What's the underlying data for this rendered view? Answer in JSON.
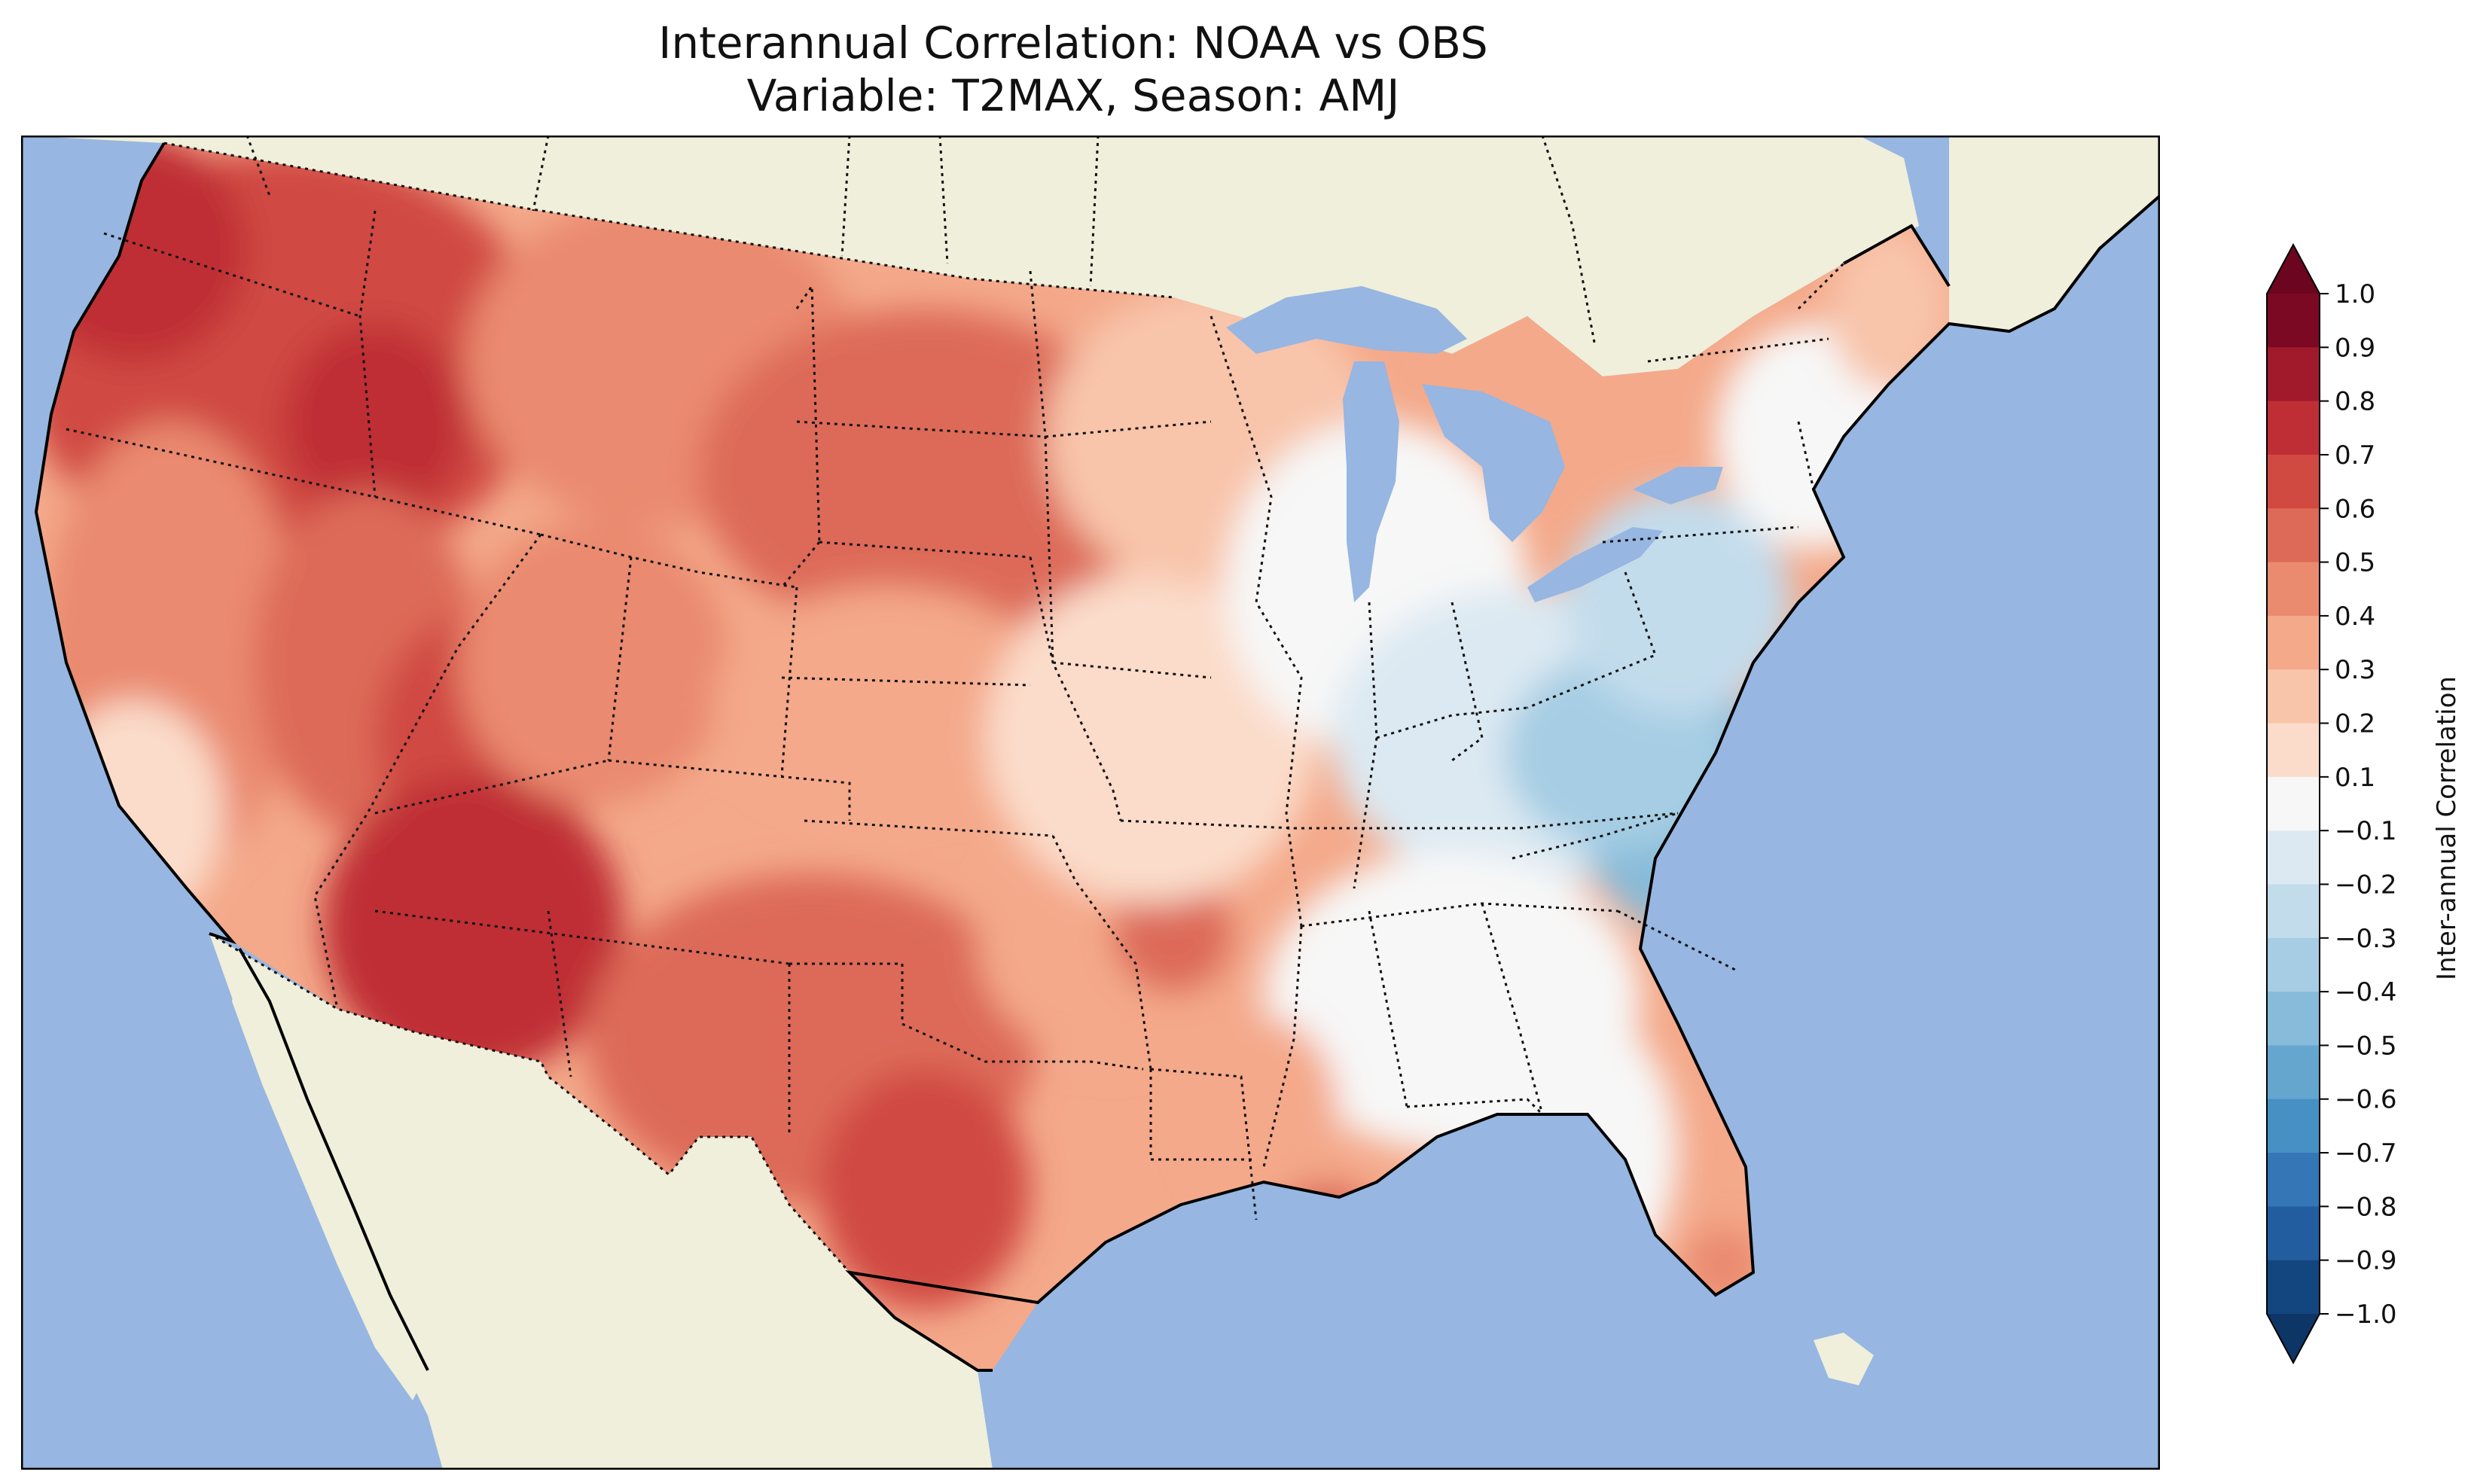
{
  "title": {
    "line1": "Interannual Correlation: NOAA vs OBS",
    "line2": "Variable: T2MAX, Season: AMJ"
  },
  "map": {
    "projection": "Lambert Conformal (CONUS)",
    "ocean_color": "#97b6e1",
    "land_color": "#efefdb",
    "features": [
      "coastlines",
      "country borders",
      "state borders",
      "lakes"
    ],
    "regional_pattern": [
      {
        "region": "Pacific Northwest",
        "correlation": 0.7
      },
      {
        "region": "Great Basin / Intermountain West",
        "correlation": 0.6
      },
      {
        "region": "California",
        "correlation": 0.4
      },
      {
        "region": "Arizona / New Mexico",
        "correlation": 0.75
      },
      {
        "region": "Northern Plains",
        "correlation": 0.5
      },
      {
        "region": "Texas",
        "correlation": 0.65
      },
      {
        "region": "Midwest",
        "correlation": 0.15
      },
      {
        "region": "Ohio Valley",
        "correlation": -0.2
      },
      {
        "region": "Mid-Atlantic / Virginia",
        "correlation": -0.45
      },
      {
        "region": "Northeast",
        "correlation": 0.0
      },
      {
        "region": "Southeast",
        "correlation": 0.05
      },
      {
        "region": "Florida",
        "correlation": 0.0
      }
    ]
  },
  "colorbar": {
    "label": "Inter-annual Correlation",
    "extend": "both",
    "ticks": [
      "1.0",
      "0.9",
      "0.8",
      "0.7",
      "0.6",
      "0.5",
      "0.4",
      "0.3",
      "0.2",
      "0.1",
      "−0.1",
      "−0.2",
      "−0.3",
      "−0.4",
      "−0.5",
      "−0.6",
      "−0.7",
      "−0.8",
      "−0.9",
      "−1.0"
    ],
    "colors": [
      "#7b0924",
      "#a11a2c",
      "#bf2e35",
      "#d04a42",
      "#dd6a58",
      "#ea8a6f",
      "#f4a98a",
      "#f8c4aa",
      "#fbdcca",
      "#f7f7f7",
      "#dce9f2",
      "#c3dcec",
      "#a6cde3",
      "#87bbd9",
      "#65a6cf",
      "#4790c4",
      "#3476b6",
      "#225e9f",
      "#13467f"
    ],
    "over_color": "#6b0520",
    "under_color": "#0d3566"
  }
}
